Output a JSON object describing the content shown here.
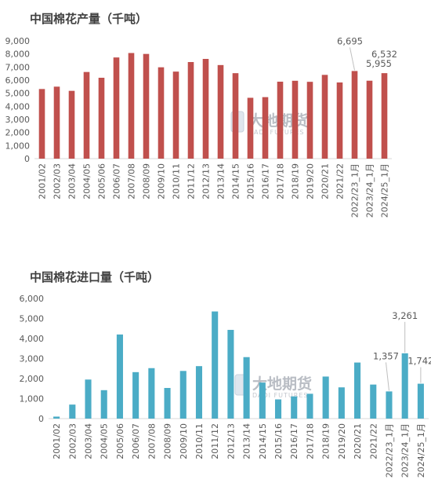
{
  "watermark": {
    "name": "大地期货",
    "sub": "DADI FUTURES"
  },
  "chart_data": [
    {
      "type": "bar",
      "title": "中国棉花产量（千吨）",
      "color": "#c0504d",
      "ylim": [
        0,
        9000
      ],
      "yticks": [
        "0",
        "1,000",
        "2,000",
        "3,000",
        "4,000",
        "5,000",
        "6,000",
        "7,000",
        "8,000",
        "9,000"
      ],
      "categories": [
        "2001/02",
        "2002/03",
        "2003/04",
        "2004/05",
        "2005/06",
        "2006/07",
        "2007/08",
        "2008/09",
        "2009/10",
        "2010/11",
        "2011/12",
        "2012/13",
        "2013/14",
        "2014/15",
        "2015/16",
        "2016/17",
        "2017/18",
        "2018/19",
        "2019/20",
        "2020/21",
        "2021/22",
        "2022/23_1月",
        "2023/24_1月",
        "2024/25_1月"
      ],
      "values": [
        5320,
        5500,
        5180,
        6620,
        6180,
        7730,
        8070,
        8000,
        6980,
        6650,
        7380,
        7620,
        7150,
        6530,
        4650,
        4700,
        5880,
        5950,
        5870,
        6400,
        5820,
        6695,
        5955,
        6532
      ],
      "data_labels": [
        {
          "index": 21,
          "text": "6,695"
        },
        {
          "index": 22,
          "text": "5,955"
        },
        {
          "index": 23,
          "text": "6,532"
        }
      ],
      "grid": false
    },
    {
      "type": "bar",
      "title": "中国棉花进口量（千吨）",
      "color": "#4bacc6",
      "ylim": [
        0,
        6000
      ],
      "yticks": [
        "0",
        "1,000",
        "2,000",
        "3,000",
        "4,000",
        "5,000",
        "6,000"
      ],
      "categories": [
        "2001/02",
        "2002/03",
        "2003/04",
        "2004/05",
        "2005/06",
        "2006/07",
        "2007/08",
        "2008/09",
        "2009/10",
        "2010/11",
        "2011/12",
        "2012/13",
        "2013/14",
        "2014/15",
        "2015/16",
        "2016/17",
        "2017/18",
        "2018/19",
        "2019/20",
        "2020/21",
        "2021/22",
        "2022/23_1月",
        "2023/24_1月",
        "2024/25_1月"
      ],
      "values": [
        100,
        700,
        1950,
        1420,
        4200,
        2320,
        2520,
        1530,
        2380,
        2620,
        5350,
        4430,
        3070,
        1800,
        960,
        1110,
        1240,
        2100,
        1560,
        2800,
        1700,
        1357,
        3261,
        1742
      ],
      "data_labels": [
        {
          "index": 21,
          "text": "1,357"
        },
        {
          "index": 22,
          "text": "3,261"
        },
        {
          "index": 23,
          "text": "1,742"
        }
      ],
      "grid": false
    }
  ]
}
